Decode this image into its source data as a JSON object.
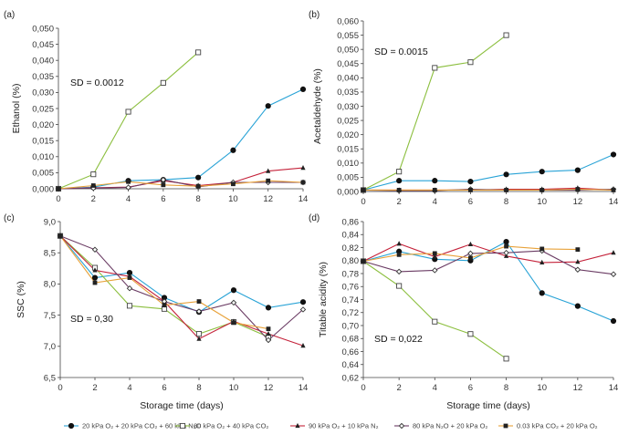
{
  "series_style": [
    {
      "color": "#29a3d6",
      "marker": "circle-filled"
    },
    {
      "color": "#8cbf3f",
      "marker": "square-open"
    },
    {
      "color": "#c4223a",
      "marker": "triangle-filled"
    },
    {
      "color": "#6a3b63",
      "marker": "diamond-open"
    },
    {
      "color": "#e8a23a",
      "marker": "square-filled-black"
    }
  ],
  "legend": [
    "20 kPa O₂ + 20 kPa CO₂ + 60 kPa N₂O",
    "60 kPa O₂ + 40 kPa CO₂",
    "90 kPa O₂ + 10 kPa N₂",
    "80 kPa N₂O + 20 kPa O₂",
    "0.03 kPa CO₂ + 20 kPa O₂"
  ],
  "chart_data": [
    {
      "type": "line",
      "panel": "(a)",
      "title": "",
      "xlabel": "",
      "ylabel": "Ethanol (%)",
      "annotation": "SD = 0.0012",
      "xlim": [
        0,
        14
      ],
      "ylim": [
        0,
        0.05
      ],
      "xticks": [
        "0",
        "2",
        "4",
        "6",
        "8",
        "10",
        "12",
        "14"
      ],
      "yticks": [
        "0,000",
        "0,005",
        "0,010",
        "0,015",
        "0,020",
        "0,025",
        "0,030",
        "0,035",
        "0,040",
        "0,045",
        "0,050"
      ],
      "series": [
        {
          "x": [
            0,
            2,
            4,
            6,
            8,
            10,
            12,
            14
          ],
          "y": [
            0,
            0.0005,
            0.0025,
            0.0028,
            0.0035,
            0.012,
            0.0258,
            0.031
          ]
        },
        {
          "x": [
            0,
            2,
            4,
            6,
            8
          ],
          "y": [
            0,
            0.0045,
            0.024,
            0.033,
            0.0425
          ]
        },
        {
          "x": [
            0,
            2,
            4,
            6,
            8,
            10,
            12,
            14
          ],
          "y": [
            0,
            0.0003,
            0.0005,
            0.0025,
            0.001,
            0.002,
            0.0055,
            0.0065
          ]
        },
        {
          "x": [
            0,
            2,
            4,
            6,
            8,
            10,
            12,
            14
          ],
          "y": [
            0,
            0.0002,
            0.0004,
            0.0028,
            0.0006,
            0.002,
            0.002,
            0.002
          ]
        },
        {
          "x": [
            0,
            2,
            4,
            6,
            8,
            10,
            12,
            14
          ],
          "y": [
            0,
            0.001,
            0.0022,
            0.0012,
            0.0008,
            0.0015,
            0.0025,
            0.002
          ]
        }
      ]
    },
    {
      "type": "line",
      "panel": "(b)",
      "title": "",
      "xlabel": "",
      "ylabel": "Acetaldehyde (%)",
      "annotation": "SD = 0.0015",
      "xlim": [
        0,
        14
      ],
      "ylim": [
        0,
        0.06
      ],
      "xticks": [
        "0",
        "2",
        "4",
        "6",
        "8",
        "10",
        "12",
        "14"
      ],
      "yticks": [
        "0,000",
        "0,005",
        "0,010",
        "0,015",
        "0,020",
        "0,025",
        "0,030",
        "0,035",
        "0,040",
        "0,045",
        "0,050",
        "0,055",
        "0,060"
      ],
      "series": [
        {
          "x": [
            0,
            2,
            4,
            6,
            8,
            10,
            12,
            14
          ],
          "y": [
            0.0005,
            0.0038,
            0.0038,
            0.0035,
            0.006,
            0.007,
            0.0075,
            0.013
          ]
        },
        {
          "x": [
            0,
            2,
            4,
            6,
            8
          ],
          "y": [
            0.0005,
            0.007,
            0.0435,
            0.0455,
            0.055
          ]
        },
        {
          "x": [
            0,
            2,
            4,
            6,
            8,
            10,
            12,
            14
          ],
          "y": [
            0.0005,
            0.0005,
            0.0005,
            0.0005,
            0.0008,
            0.0008,
            0.0012,
            0.0005
          ]
        },
        {
          "x": [
            0,
            2,
            4,
            6,
            8,
            10,
            12,
            14
          ],
          "y": [
            0.0005,
            0.0003,
            0.0003,
            0.0008,
            0.0005,
            0.0005,
            0.0005,
            0.0008
          ]
        },
        {
          "x": [
            0,
            2,
            4,
            6,
            8,
            10,
            12,
            14
          ],
          "y": [
            0.0005,
            0.0005,
            0.0005,
            0.0005,
            0.0005,
            0.0005,
            0.0008,
            0.0005
          ]
        }
      ]
    },
    {
      "type": "line",
      "panel": "(c)",
      "title": "",
      "xlabel": "Storage time  (days)",
      "ylabel": "SSC (%)",
      "annotation": "SD = 0,30",
      "xlim": [
        0,
        14
      ],
      "ylim": [
        6.5,
        9.0
      ],
      "xticks": [
        "0",
        "2",
        "4",
        "6",
        "8",
        "10",
        "12",
        "14"
      ],
      "yticks": [
        "6,5",
        "7,0",
        "7,5",
        "8,0",
        "8,5",
        "9,0"
      ],
      "series": [
        {
          "x": [
            0,
            2,
            4,
            6,
            8,
            10,
            12,
            14
          ],
          "y": [
            8.77,
            8.1,
            8.18,
            7.78,
            7.55,
            7.9,
            7.62,
            7.71
          ]
        },
        {
          "x": [
            0,
            2,
            4,
            6,
            8,
            10,
            12
          ],
          "y": [
            8.77,
            8.26,
            7.65,
            7.6,
            7.2,
            7.39,
            7.15
          ]
        },
        {
          "x": [
            0,
            2,
            4,
            6,
            8,
            10,
            12,
            14
          ],
          "y": [
            8.77,
            8.22,
            8.12,
            7.72,
            7.12,
            7.4,
            7.2,
            7.01
          ]
        },
        {
          "x": [
            0,
            2,
            4,
            6,
            8,
            10,
            12,
            14
          ],
          "y": [
            8.77,
            8.55,
            7.93,
            7.72,
            7.56,
            7.7,
            7.1,
            7.59
          ]
        },
        {
          "x": [
            0,
            2,
            4,
            6,
            8,
            10,
            12
          ],
          "y": [
            8.77,
            8.02,
            8.1,
            7.66,
            7.72,
            7.38,
            7.28
          ]
        }
      ]
    },
    {
      "type": "line",
      "panel": "(d)",
      "title": "",
      "xlabel": "Storage time  (days)",
      "ylabel": "Titable acidity (%)",
      "annotation": "SD = 0,022",
      "xlim": [
        0,
        14
      ],
      "ylim": [
        0.62,
        0.86
      ],
      "xticks": [
        "0",
        "2",
        "4",
        "6",
        "8",
        "10",
        "12",
        "14"
      ],
      "yticks": [
        "0,62",
        "0,64",
        "0,66",
        "0,68",
        "0,70",
        "0,72",
        "0,74",
        "0,76",
        "0,78",
        "0,80",
        "0,82",
        "0,84",
        "0,86"
      ],
      "series": [
        {
          "x": [
            0,
            2,
            4,
            6,
            8,
            10,
            12,
            14
          ],
          "y": [
            0.799,
            0.814,
            0.802,
            0.8,
            0.829,
            0.75,
            0.73,
            0.707
          ]
        },
        {
          "x": [
            0,
            2,
            4,
            6,
            8
          ],
          "y": [
            0.799,
            0.761,
            0.706,
            0.687,
            0.649
          ]
        },
        {
          "x": [
            0,
            2,
            4,
            6,
            8,
            10,
            12,
            14
          ],
          "y": [
            0.799,
            0.826,
            0.806,
            0.825,
            0.807,
            0.797,
            0.798,
            0.812
          ]
        },
        {
          "x": [
            0,
            2,
            4,
            6,
            8,
            10,
            12,
            14
          ],
          "y": [
            0.799,
            0.783,
            0.785,
            0.811,
            0.812,
            0.815,
            0.786,
            0.779
          ]
        },
        {
          "x": [
            0,
            2,
            4,
            6,
            8,
            10,
            12
          ],
          "y": [
            0.799,
            0.809,
            0.811,
            0.804,
            0.822,
            0.818,
            0.817
          ]
        }
      ]
    }
  ]
}
